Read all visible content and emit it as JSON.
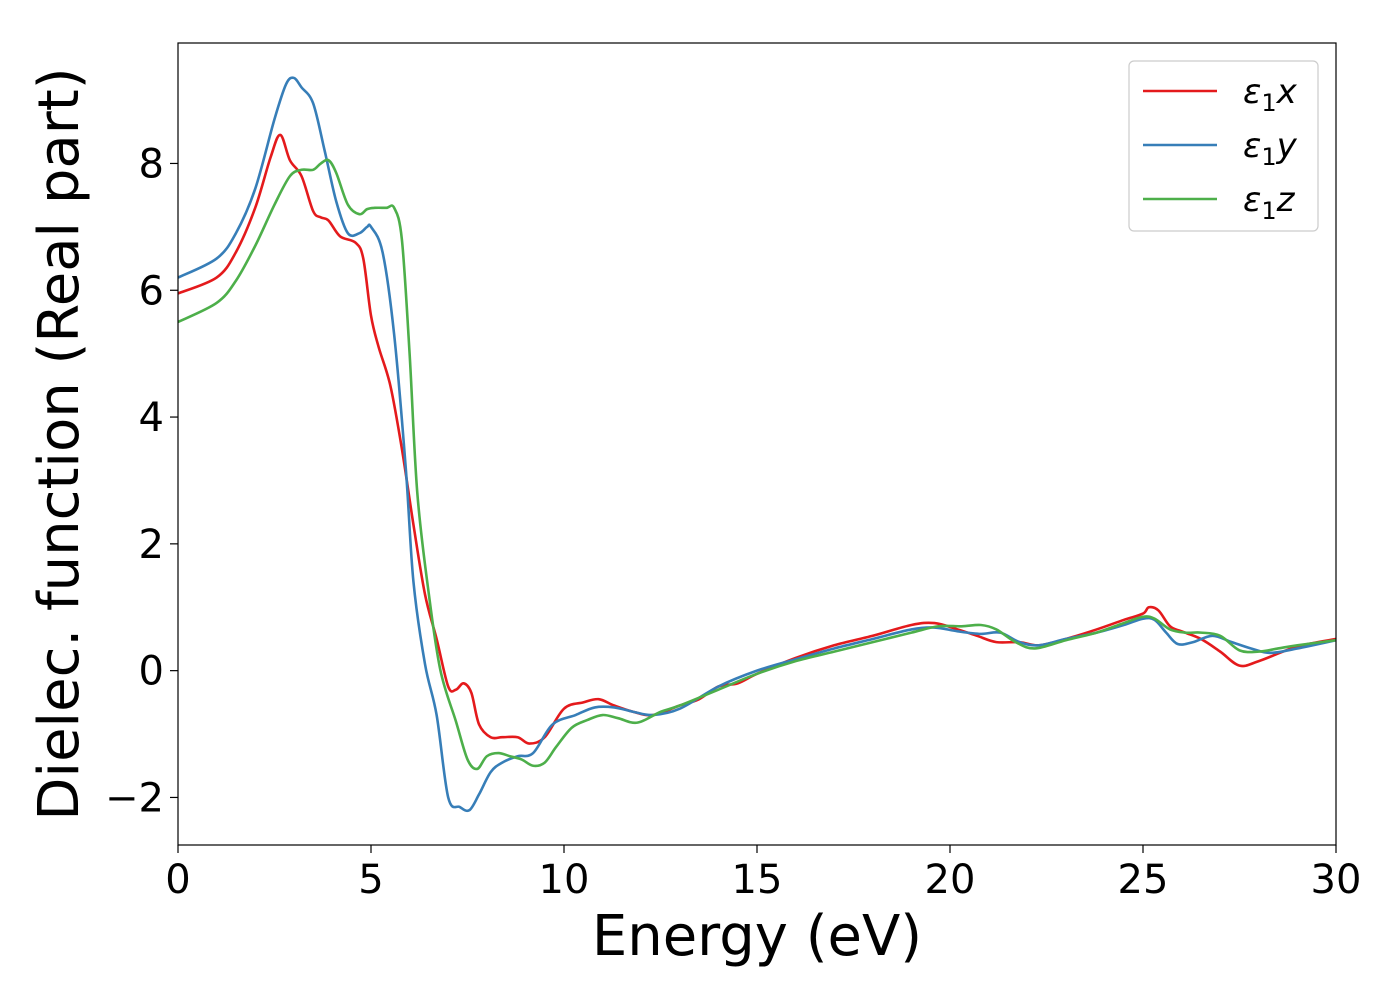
{
  "chart_data": {
    "type": "line",
    "xlabel": "Energy (eV)",
    "ylabel": "Dielec. function (Real part)",
    "xlim": [
      0,
      30
    ],
    "ylim": [
      -2.75,
      9.9
    ],
    "xticks": [
      0,
      5,
      10,
      15,
      20,
      25,
      30
    ],
    "xtick_labels": [
      "0",
      "5",
      "10",
      "15",
      "20",
      "25",
      "30"
    ],
    "yticks": [
      -2,
      0,
      2,
      4,
      6,
      8
    ],
    "ytick_labels": [
      "−2",
      "0",
      "2",
      "4",
      "6",
      "8"
    ],
    "grid": false,
    "legend_position": "top-right",
    "series": [
      {
        "name": "ε₁x",
        "legend_base": "ε",
        "legend_sub": "1",
        "legend_var": "x",
        "color": "#e41a1c",
        "x": [
          0,
          1,
          1.5,
          2,
          2.4,
          2.65,
          2.9,
          3.2,
          3.5,
          3.7,
          3.9,
          4.2,
          4.6,
          4.8,
          5.0,
          5.2,
          5.5,
          5.8,
          6.1,
          6.4,
          6.7,
          7.0,
          7.2,
          7.4,
          7.6,
          7.8,
          8.1,
          8.4,
          8.8,
          9.1,
          9.5,
          10.0,
          10.5,
          10.9,
          11.3,
          11.8,
          12.3,
          13.0,
          13.5,
          14.0,
          14.5,
          15.0,
          16.0,
          17.0,
          18.0,
          19.0,
          19.6,
          20.2,
          20.7,
          21.2,
          21.8,
          22.3,
          23.0,
          23.8,
          24.5,
          25.0,
          25.15,
          25.4,
          25.7,
          26.0,
          26.5,
          27.0,
          27.5,
          28.0,
          29.0,
          30.0
        ],
        "y": [
          5.95,
          6.2,
          6.6,
          7.3,
          8.1,
          8.45,
          8.05,
          7.8,
          7.25,
          7.15,
          7.1,
          6.85,
          6.75,
          6.5,
          5.6,
          5.1,
          4.5,
          3.5,
          2.3,
          1.2,
          0.5,
          -0.25,
          -0.3,
          -0.2,
          -0.35,
          -0.85,
          -1.05,
          -1.05,
          -1.05,
          -1.15,
          -1.05,
          -0.6,
          -0.5,
          -0.45,
          -0.55,
          -0.65,
          -0.7,
          -0.55,
          -0.45,
          -0.25,
          -0.2,
          -0.05,
          0.2,
          0.4,
          0.55,
          0.72,
          0.75,
          0.65,
          0.55,
          0.45,
          0.45,
          0.4,
          0.5,
          0.65,
          0.8,
          0.9,
          1.0,
          0.95,
          0.7,
          0.62,
          0.5,
          0.3,
          0.08,
          0.15,
          0.38,
          0.5
        ]
      },
      {
        "name": "ε₁y",
        "legend_base": "ε",
        "legend_sub": "1",
        "legend_var": "y",
        "color": "#377eb8",
        "x": [
          0,
          1,
          1.5,
          2,
          2.5,
          2.8,
          3.0,
          3.2,
          3.5,
          3.8,
          4.1,
          4.4,
          4.7,
          4.9,
          5.0,
          5.3,
          5.6,
          5.9,
          6.1,
          6.4,
          6.7,
          7.0,
          7.3,
          7.55,
          7.8,
          8.1,
          8.4,
          8.8,
          9.2,
          9.7,
          10.3,
          10.8,
          11.3,
          11.8,
          12.3,
          13.0,
          14.0,
          15.0,
          16.0,
          17.0,
          18.0,
          19.0,
          19.6,
          20.2,
          20.8,
          21.3,
          21.8,
          22.3,
          23.0,
          23.8,
          24.5,
          25.0,
          25.3,
          25.6,
          25.9,
          26.3,
          26.8,
          27.3,
          27.8,
          28.3,
          29.0,
          30.0
        ],
        "y": [
          6.2,
          6.5,
          6.9,
          7.6,
          8.7,
          9.25,
          9.35,
          9.2,
          8.95,
          8.2,
          7.4,
          6.9,
          6.9,
          7.0,
          7.0,
          6.6,
          5.3,
          3.2,
          1.4,
          0.1,
          -0.7,
          -2.0,
          -2.15,
          -2.2,
          -1.95,
          -1.6,
          -1.45,
          -1.35,
          -1.3,
          -0.85,
          -0.7,
          -0.58,
          -0.58,
          -0.65,
          -0.7,
          -0.6,
          -0.25,
          0.0,
          0.18,
          0.35,
          0.5,
          0.65,
          0.68,
          0.62,
          0.58,
          0.6,
          0.45,
          0.4,
          0.5,
          0.6,
          0.72,
          0.82,
          0.8,
          0.6,
          0.42,
          0.45,
          0.55,
          0.45,
          0.35,
          0.28,
          0.35,
          0.48
        ]
      },
      {
        "name": "ε₁z",
        "legend_base": "ε",
        "legend_sub": "1",
        "legend_var": "z",
        "color": "#4daf4a",
        "x": [
          0,
          1,
          1.5,
          2,
          2.5,
          2.9,
          3.2,
          3.5,
          3.7,
          3.9,
          4.1,
          4.4,
          4.7,
          4.9,
          5.1,
          5.4,
          5.6,
          5.8,
          6.0,
          6.2,
          6.5,
          6.8,
          7.2,
          7.5,
          7.75,
          8.0,
          8.3,
          8.6,
          8.9,
          9.2,
          9.5,
          9.8,
          10.2,
          10.6,
          11.0,
          11.4,
          11.9,
          12.5,
          13.0,
          14.0,
          15.0,
          16.0,
          17.0,
          18.0,
          19.0,
          19.7,
          20.3,
          20.8,
          21.2,
          21.7,
          22.2,
          23.0,
          23.8,
          24.5,
          25.0,
          25.3,
          25.7,
          26.1,
          26.5,
          27.0,
          27.5,
          28.0,
          28.5,
          29.0,
          30.0
        ],
        "y": [
          5.5,
          5.8,
          6.15,
          6.7,
          7.35,
          7.8,
          7.9,
          7.9,
          8.0,
          8.05,
          7.85,
          7.35,
          7.2,
          7.28,
          7.3,
          7.3,
          7.3,
          6.8,
          5.0,
          2.8,
          1.2,
          0.0,
          -0.8,
          -1.4,
          -1.55,
          -1.35,
          -1.3,
          -1.35,
          -1.4,
          -1.5,
          -1.45,
          -1.2,
          -0.9,
          -0.78,
          -0.7,
          -0.75,
          -0.82,
          -0.65,
          -0.55,
          -0.3,
          -0.05,
          0.15,
          0.3,
          0.45,
          0.6,
          0.7,
          0.7,
          0.72,
          0.65,
          0.45,
          0.35,
          0.48,
          0.6,
          0.75,
          0.85,
          0.82,
          0.65,
          0.6,
          0.6,
          0.55,
          0.32,
          0.3,
          0.35,
          0.4,
          0.48
        ]
      }
    ]
  }
}
